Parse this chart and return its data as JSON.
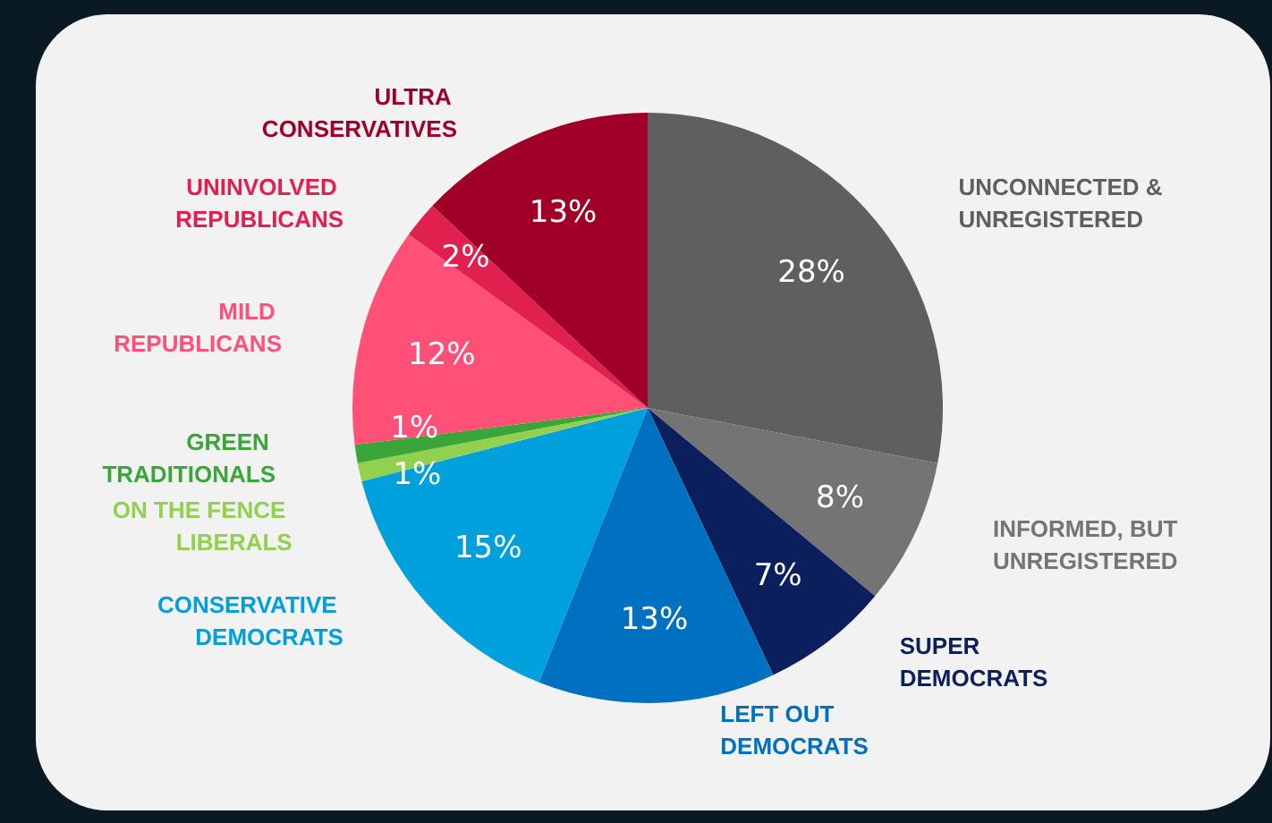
{
  "chart_data": {
    "type": "pie",
    "categories": [
      "UNCONNECTED & UNREGISTERED",
      "INFORMED, BUT UNREGISTERED",
      "SUPER DEMOCRATS",
      "LEFT OUT DEMOCRATS",
      "CONSERVATIVE DEMOCRATS",
      "ON THE FENCE LIBERALS",
      "GREEN TRADITIONALS",
      "MILD REPUBLICANS",
      "UNINVOLVED REPUBLICANS",
      "ULTRA CONSERVATIVES"
    ],
    "values": [
      28,
      8,
      7,
      13,
      15,
      1,
      1,
      12,
      2,
      13
    ],
    "value_labels": [
      "28%",
      "8%",
      "7%",
      "13%",
      "15%",
      "1%",
      "1%",
      "12%",
      "2%",
      "13%"
    ],
    "colors": [
      "#5f5f5f",
      "#747474",
      "#0b1f5c",
      "#0070c0",
      "#00a0dc",
      "#92d050",
      "#3aa63a",
      "#ff5078",
      "#e0204f",
      "#a00028"
    ],
    "legend": false
  }
}
